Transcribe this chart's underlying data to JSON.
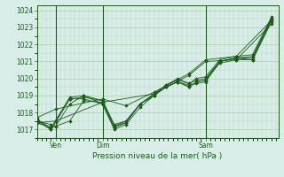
{
  "bg_color": "#d8ede8",
  "plot_bg_color": "#d8ede8",
  "grid_color": "#aacfaa",
  "line_color": "#1a5c1a",
  "marker_color": "#1a5c1a",
  "ylim": [
    1016.5,
    1024.3
  ],
  "yticks": [
    1017,
    1018,
    1019,
    1020,
    1021,
    1022,
    1023,
    1024
  ],
  "xlabel": "Pression niveau de la mer( hPa )",
  "xtick_labels": [
    "Ven",
    "Dim",
    "Sam"
  ],
  "xtick_positions": [
    0.08,
    0.28,
    0.72
  ],
  "vline_positions": [
    0.08,
    0.28,
    0.72
  ],
  "xlim": [
    0.0,
    1.03
  ],
  "series": [
    [
      0.0,
      1017.4,
      0.08,
      1017.5,
      0.28,
      1018.6,
      0.5,
      1019.1,
      0.65,
      1020.2,
      0.72,
      1021.0,
      0.85,
      1021.1,
      1.0,
      1023.2
    ],
    [
      0.0,
      1017.7,
      0.08,
      1018.2,
      0.28,
      1018.8,
      0.38,
      1018.4,
      0.5,
      1019.2,
      0.65,
      1020.3,
      0.72,
      1021.1,
      0.85,
      1021.3,
      1.0,
      1023.4
    ],
    [
      0.0,
      1017.5,
      0.06,
      1017.3,
      0.08,
      1017.2,
      0.14,
      1017.5,
      0.2,
      1018.7,
      0.28,
      1018.6,
      0.33,
      1017.1,
      0.38,
      1017.4,
      0.44,
      1018.5,
      0.5,
      1019.0,
      0.55,
      1019.5,
      0.6,
      1019.8,
      0.65,
      1019.6,
      0.68,
      1019.7,
      0.72,
      1019.8,
      0.78,
      1021.0,
      0.85,
      1021.2,
      0.92,
      1021.2,
      1.0,
      1023.5
    ],
    [
      0.0,
      1017.6,
      0.06,
      1017.0,
      0.14,
      1018.8,
      0.2,
      1018.9,
      0.28,
      1018.7,
      0.33,
      1017.3,
      0.38,
      1017.5,
      0.44,
      1018.5,
      0.5,
      1019.1,
      0.55,
      1019.6,
      0.6,
      1019.9,
      0.65,
      1019.7,
      0.68,
      1019.9,
      0.72,
      1020.0,
      0.78,
      1021.0,
      0.85,
      1021.2,
      0.92,
      1021.3,
      1.0,
      1023.5
    ],
    [
      0.0,
      1017.6,
      0.06,
      1017.1,
      0.14,
      1018.9,
      0.2,
      1019.0,
      0.28,
      1018.7,
      0.33,
      1017.2,
      0.38,
      1017.4,
      0.44,
      1018.5,
      0.5,
      1019.1,
      0.55,
      1019.6,
      0.6,
      1020.0,
      0.65,
      1019.7,
      0.68,
      1020.0,
      0.72,
      1020.1,
      0.78,
      1021.1,
      0.85,
      1021.3,
      0.92,
      1021.4,
      1.0,
      1023.6
    ],
    [
      0.0,
      1017.5,
      0.06,
      1017.0,
      0.14,
      1018.8,
      0.2,
      1018.8,
      0.28,
      1018.5,
      0.33,
      1017.0,
      0.38,
      1017.3,
      0.44,
      1018.3,
      0.5,
      1019.0,
      0.55,
      1019.5,
      0.6,
      1019.8,
      0.65,
      1019.5,
      0.68,
      1019.8,
      0.72,
      1019.9,
      0.78,
      1020.9,
      0.85,
      1021.1,
      0.92,
      1021.1,
      1.0,
      1023.4
    ],
    [
      0.0,
      1017.4,
      0.06,
      1017.1,
      0.08,
      1017.2,
      0.14,
      1018.5,
      0.2,
      1019.0,
      0.28,
      1018.5,
      0.33,
      1017.2,
      0.38,
      1017.5,
      0.44,
      1018.5,
      0.5,
      1019.0,
      0.55,
      1019.5,
      0.6,
      1019.8,
      0.65,
      1019.5,
      0.68,
      1019.8,
      0.72,
      1019.9,
      0.78,
      1021.0,
      0.85,
      1021.2,
      0.92,
      1021.1,
      1.0,
      1023.3
    ]
  ]
}
